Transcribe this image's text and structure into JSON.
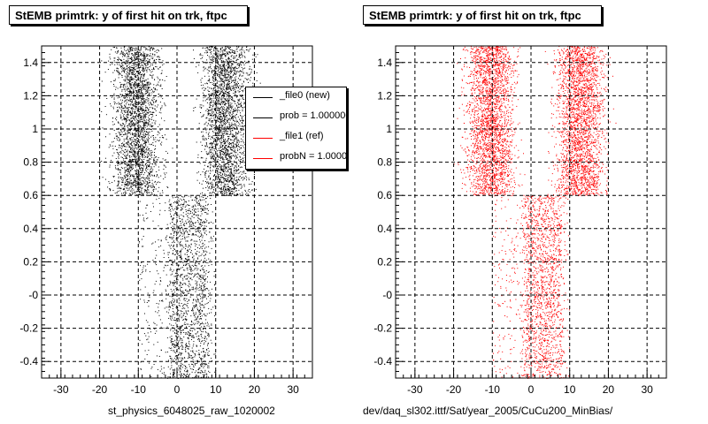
{
  "chart_data": [
    {
      "type": "scatter",
      "title": "StEMB primtrk: y of first hit on trk, ftpc",
      "xlabel": "st_physics_6048025_raw_1020002",
      "ylabel": "",
      "xlim": [
        -35,
        35
      ],
      "ylim": [
        -0.5,
        1.5
      ],
      "xticks": [
        "-30",
        "-20",
        "-10",
        "0",
        "10",
        "20",
        "30"
      ],
      "yticks": [
        "-0.4",
        "-0.2",
        "-0",
        "0.2",
        "0.4",
        "0.6",
        "0.8",
        "1",
        "1.2",
        "1.4"
      ],
      "grid": true,
      "marker_color": "#000000",
      "legend": {
        "placement": "top-right",
        "entries": [
          {
            "label": "_file0 (new)",
            "color": "#000000"
          },
          {
            "label": "prob = 1.000000",
            "color": "#000000"
          },
          {
            "label": "_file1 (ref)",
            "color": "#ff0000"
          },
          {
            "label": "probN = 1.000000",
            "color": "#ff0000"
          }
        ]
      },
      "density_regions": [
        {
          "y_range": [
            0.6,
            1.5
          ],
          "x_ranges": [
            [
              -20,
              -1
            ],
            [
              3,
              22
            ]
          ]
        },
        {
          "y_range": [
            -0.5,
            0.6
          ],
          "x_ranges": [
            [
              -10,
              10
            ]
          ],
          "core": [
            -2,
            8
          ]
        }
      ]
    },
    {
      "type": "scatter",
      "title": "StEMB primtrk: y of first hit on trk, ftpc",
      "xlabel": "dev/daq_sl302.ittf/Sat/year_2005/CuCu200_MinBias/",
      "ylabel": "",
      "xlim": [
        -35,
        35
      ],
      "ylim": [
        -0.5,
        1.5
      ],
      "xticks": [
        "-30",
        "-20",
        "-10",
        "0",
        "10",
        "20",
        "30"
      ],
      "yticks": [
        "-0.4",
        "-0.2",
        "-0",
        "0.2",
        "0.4",
        "0.6",
        "0.8",
        "1",
        "1.2",
        "1.4"
      ],
      "grid": true,
      "marker_color": "#ff0000",
      "density_regions": [
        {
          "y_range": [
            0.6,
            1.5
          ],
          "x_ranges": [
            [
              -20,
              -1
            ],
            [
              3,
              22
            ]
          ]
        },
        {
          "y_range": [
            -0.5,
            0.6
          ],
          "x_ranges": [
            [
              -10,
              10
            ]
          ],
          "core": [
            -2,
            8
          ]
        }
      ]
    }
  ]
}
